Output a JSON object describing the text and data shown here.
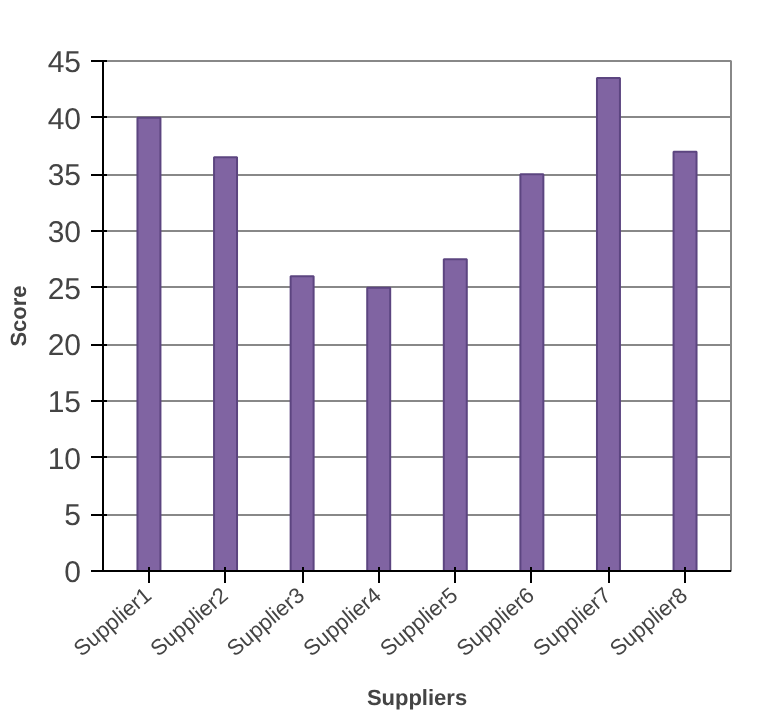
{
  "chart_data": {
    "type": "bar",
    "xlabel": "Suppliers",
    "ylabel": "Score",
    "categories": [
      "Supplier1",
      "Supplier2",
      "Supplier3",
      "Supplier4",
      "Supplier5",
      "Supplier6",
      "Supplier7",
      "Supplier8"
    ],
    "values": [
      40,
      36.5,
      26,
      25,
      27.5,
      35,
      43.5,
      37
    ],
    "color": "#8064a2",
    "ylim": [
      0,
      45
    ],
    "yticks": [
      0,
      5,
      10,
      15,
      20,
      25,
      30,
      35,
      40,
      45
    ],
    "grid": "y"
  }
}
